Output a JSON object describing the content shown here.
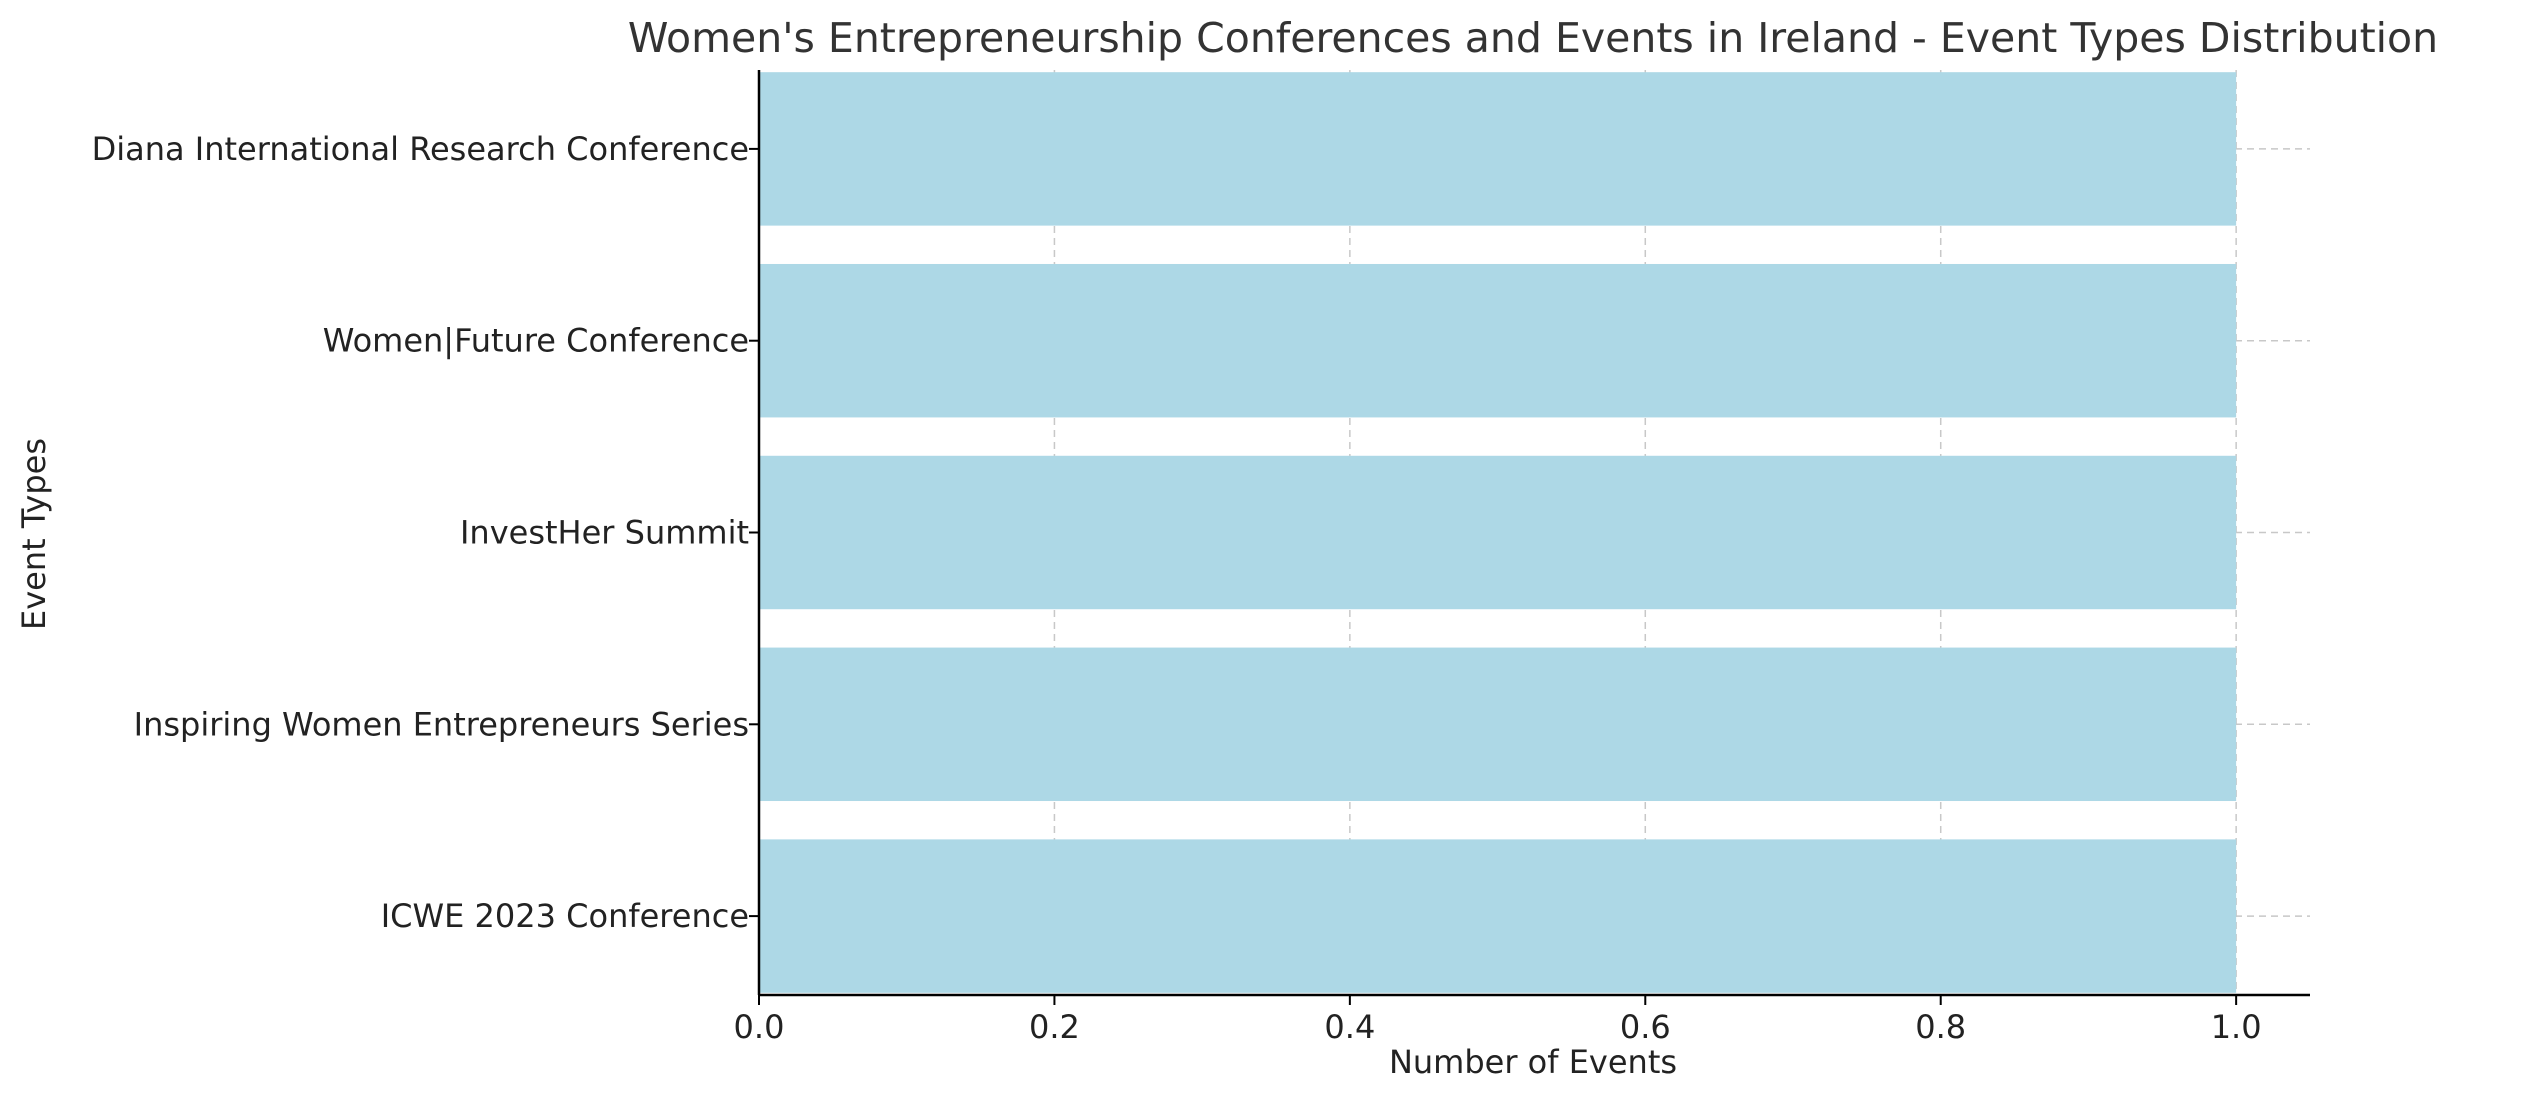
{
  "chart_data": {
    "type": "bar",
    "orientation": "horizontal",
    "title": "Women's Entrepreneurship Conferences and Events in Ireland - Event Types Distribution",
    "xlabel": "Number of Events",
    "ylabel": "Event Types",
    "categories": [
      "ICWE 2023 Conference",
      "Inspiring Women Entrepreneurs Series",
      "InvestHer Summit",
      "Women|Future Conference",
      "Diana International Research Conference"
    ],
    "values": [
      1,
      1,
      1,
      1,
      1
    ],
    "xlim": [
      0,
      1.05
    ],
    "xticks": [
      0.0,
      0.2,
      0.4,
      0.6,
      0.8,
      1.0
    ],
    "xtick_labels": [
      "0.0",
      "0.2",
      "0.4",
      "0.6",
      "0.8",
      "1.0"
    ],
    "grid": true,
    "bar_color": "#add8e6"
  }
}
